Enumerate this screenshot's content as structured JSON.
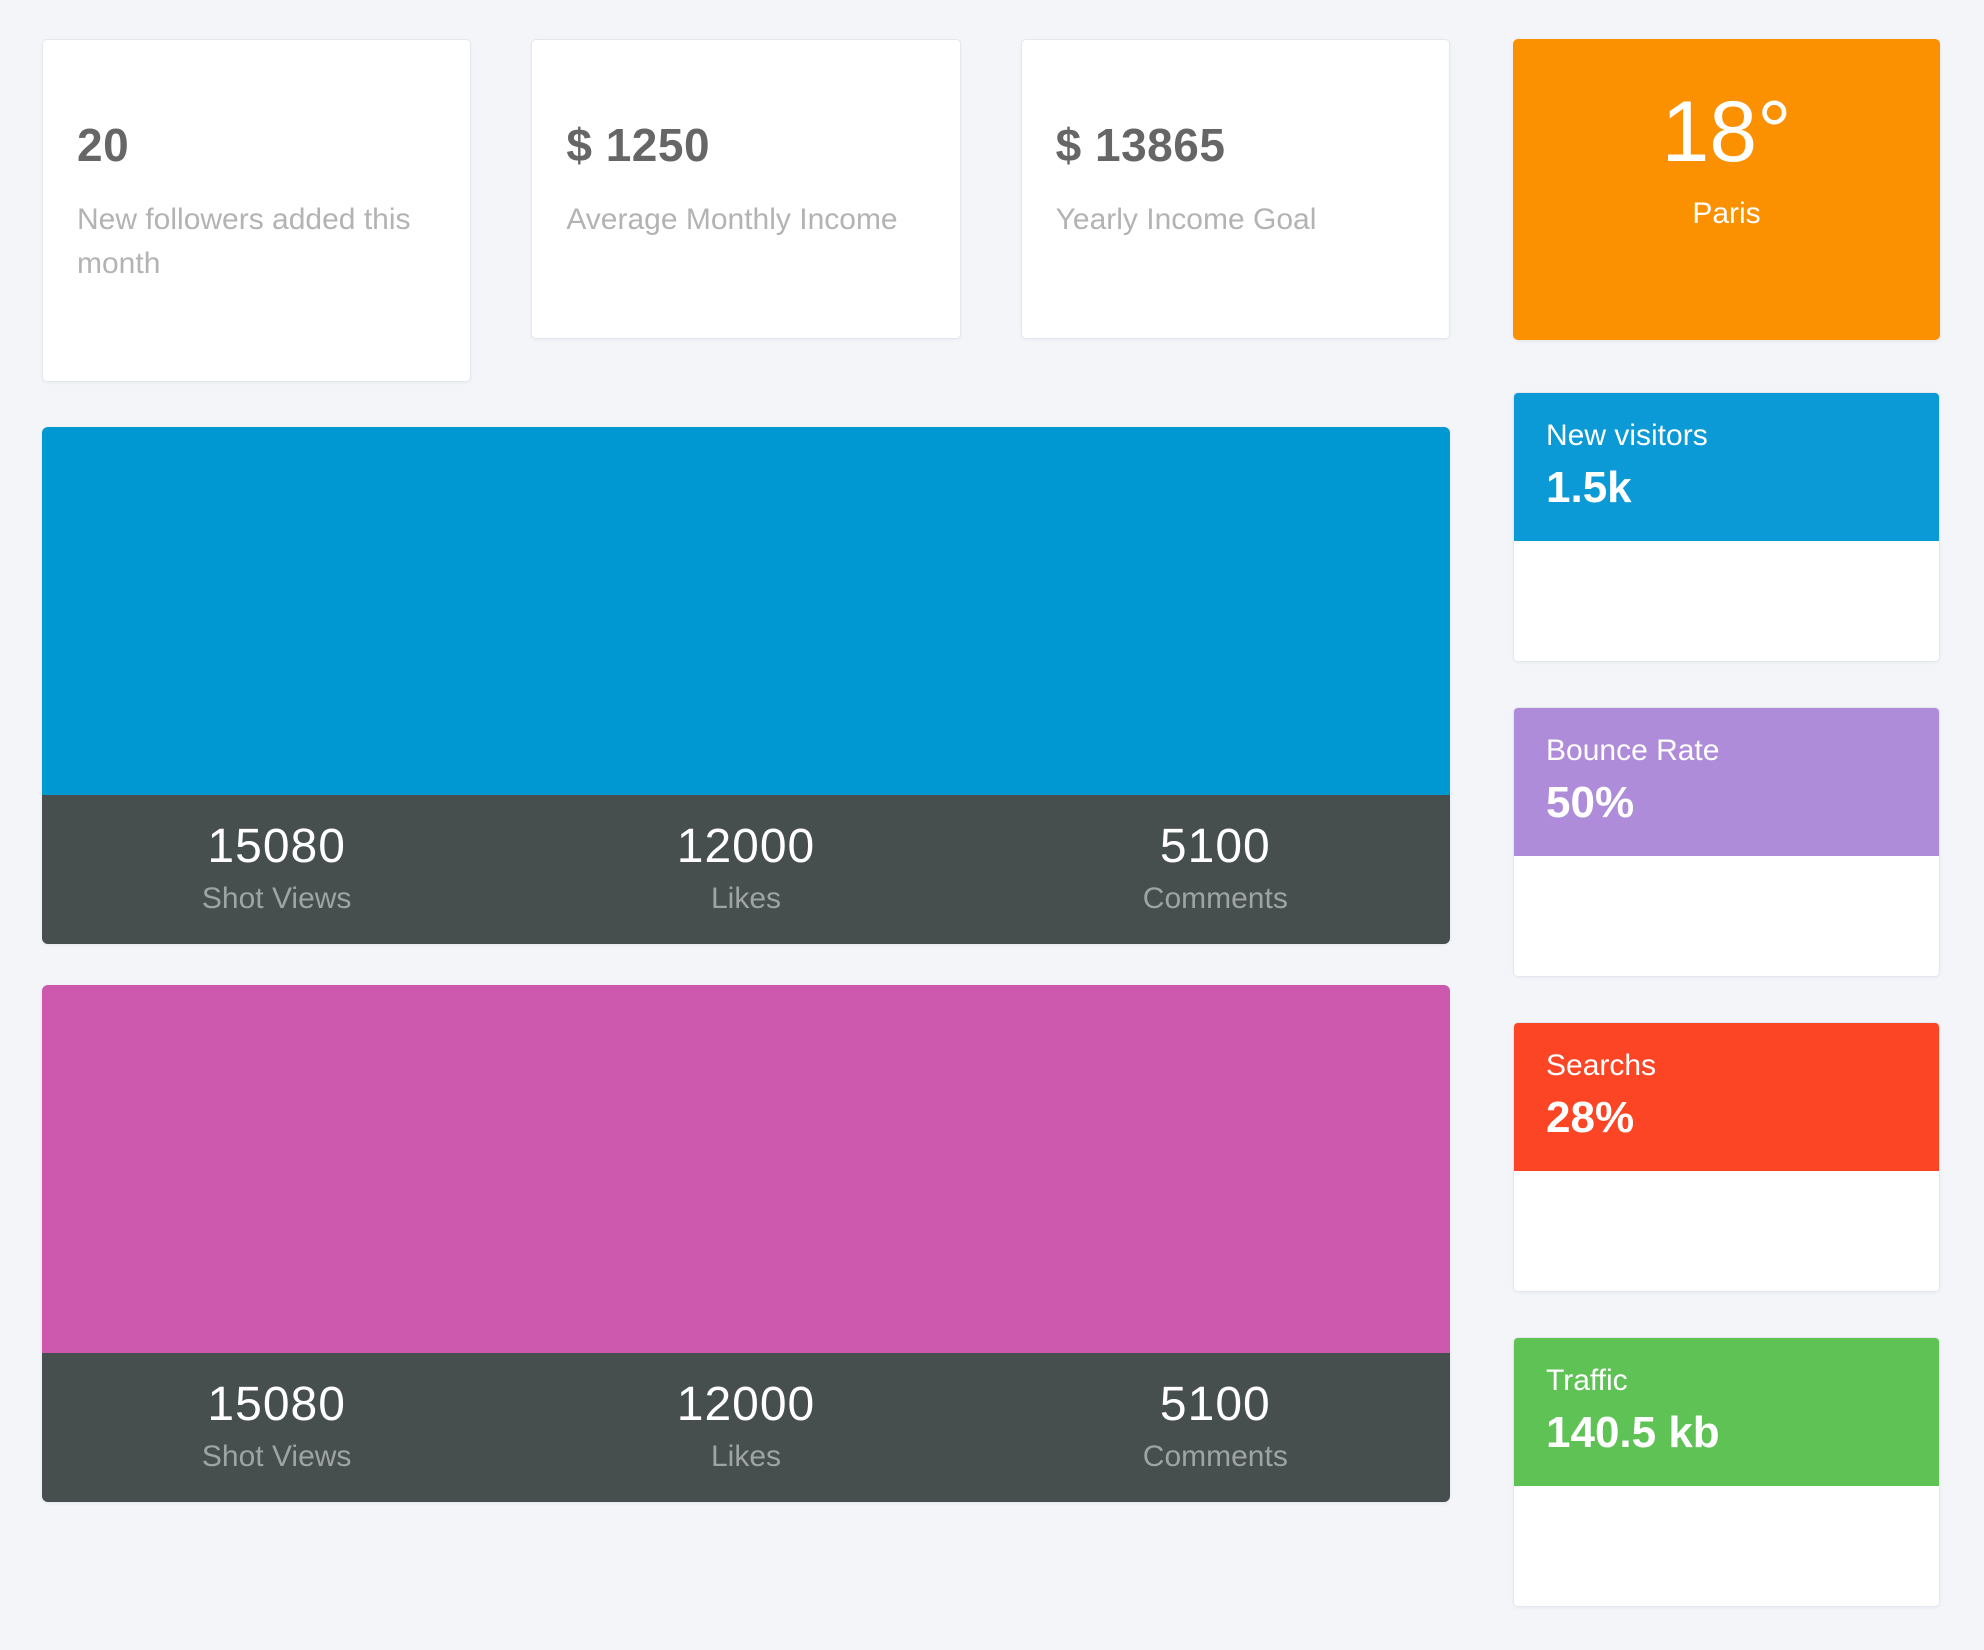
{
  "page": {
    "background": "#F3F5F9"
  },
  "stat_cards": [
    {
      "value": "20",
      "label": "New followers added this month"
    },
    {
      "value": "$ 1250",
      "label": "Average Monthly Income"
    },
    {
      "value": "$ 13865",
      "label": "Yearly Income Goal"
    }
  ],
  "weather_card": {
    "temperature": "18°",
    "city": "Paris",
    "color": "#FB9000"
  },
  "engagement_panels": [
    {
      "color": "#0098D2",
      "stats": [
        {
          "value": "15080",
          "label": "Shot Views"
        },
        {
          "value": "12000",
          "label": "Likes"
        },
        {
          "value": "5100",
          "label": "Comments"
        }
      ]
    },
    {
      "color": "#CD59AE",
      "stats": [
        {
          "value": "15080",
          "label": "Shot Views"
        },
        {
          "value": "12000",
          "label": "Likes"
        },
        {
          "value": "5100",
          "label": "Comments"
        }
      ]
    }
  ],
  "side_cards": [
    {
      "title": "New visitors",
      "value": "1.5k",
      "color": "#0C9AD6"
    },
    {
      "title": "Bounce Rate",
      "value": "50%",
      "color": "#AF8CD9"
    },
    {
      "title": "Searchs",
      "value": "28%",
      "color": "#FB4524"
    },
    {
      "title": "Traffic",
      "value": "140.5 kb",
      "color": "#5EC255"
    }
  ],
  "footer_colors": {
    "background": "#474E4E",
    "label": "#9EA3A3"
  }
}
